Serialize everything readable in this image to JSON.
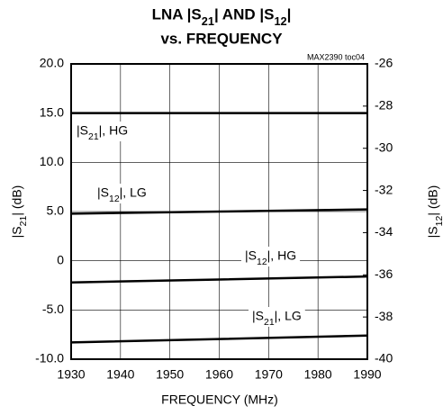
{
  "chart_data": {
    "type": "line",
    "title": [
      "LNA |S21| AND |S12|",
      "vs. FREQUENCY"
    ],
    "note": "MAX2390 toc04",
    "xlabel": "FREQUENCY (MHz)",
    "ylabel": "|S21| (dB)",
    "y2label": "|S12| (dB)",
    "x": [
      1930,
      1960,
      1990
    ],
    "xlim": [
      1930,
      1990
    ],
    "xticks": [
      1930,
      1940,
      1950,
      1960,
      1970,
      1980,
      1990
    ],
    "ylim": [
      -10,
      20
    ],
    "yticks": [
      {
        "value": -10,
        "label": "-10.0"
      },
      {
        "value": -5,
        "label": "-5.0"
      },
      0,
      {
        "value": 5,
        "label": "5.0"
      },
      {
        "value": 10,
        "label": "10.0"
      },
      {
        "value": 15,
        "label": "15.0"
      },
      {
        "value": 20,
        "label": "20.0"
      }
    ],
    "y2lim": [
      -40,
      -26
    ],
    "y2ticks": [
      -40,
      -38,
      -36,
      -34,
      -32,
      -30,
      -28,
      -26
    ],
    "grid": true,
    "series": [
      {
        "name": "|S21|, HG",
        "color": "#000000",
        "values": [
          15.0,
          15.0,
          15.0
        ]
      },
      {
        "name": "|S12|, LG",
        "color": "#000000",
        "axis": "y2",
        "values": [
          -33.1,
          -33.0,
          -32.9
        ]
      },
      {
        "name": "|S12|, HG",
        "color": "#000000",
        "axis": "y2",
        "values": [
          -36.36,
          -36.22,
          -36.08
        ]
      },
      {
        "name": "|S21|, LG",
        "color": "#000000",
        "values": [
          -8.3,
          -7.95,
          -7.6
        ]
      }
    ]
  }
}
